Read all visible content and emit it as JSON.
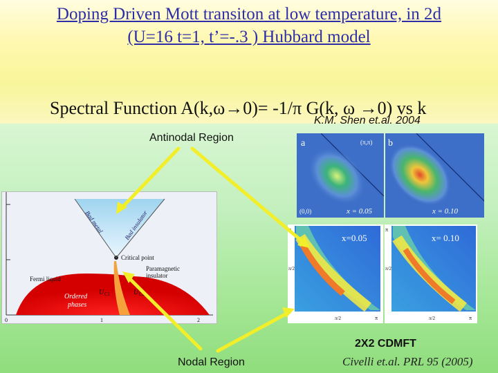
{
  "title": {
    "line1": "Doping Driven Mott transiton at low temperature, in 2d",
    "line2": "(U=16 t=1, t’=-.3 ) Hubbard model"
  },
  "spectral": "Spectral Function A(k,ω→0)= -1/π G(k, ω →0) vs k",
  "credit_shen": "K.M. Shen et.al. 2004",
  "antinodal_label": "Antinodal Region",
  "nodal_label": "Nodal Region",
  "cdmft_label": "2X2 CDMFT",
  "civelli_credit": "Civelli et.al. PRL 95 (2005)",
  "phase_diagram": {
    "labels": [
      "Bad metal",
      "Bad insulator",
      "Critical point",
      "Paramagnetic",
      "insulator",
      "Fermi liquid",
      "Ordered",
      "phases",
      "U",
      "C1",
      "U",
      "C2"
    ],
    "ticks": [
      "0",
      "1",
      "2"
    ]
  },
  "arpes": {
    "a": {
      "letter": "a",
      "corner_top": "(π,π)",
      "corner_bottom": "(0,0)",
      "doping": "x = 0.05"
    },
    "b": {
      "letter": "b",
      "doping": "x = 0.10"
    }
  },
  "cdmft_panels": [
    {
      "doping": "x=0.05",
      "axis": [
        "π",
        "π/2",
        "π/2",
        "π"
      ]
    },
    {
      "doping": "x= 0.10",
      "axis": [
        "π",
        "π/2",
        "π/2",
        "π"
      ]
    }
  ],
  "colors": {
    "title": "#2d2da8",
    "arrow": "#f2ef2a"
  }
}
